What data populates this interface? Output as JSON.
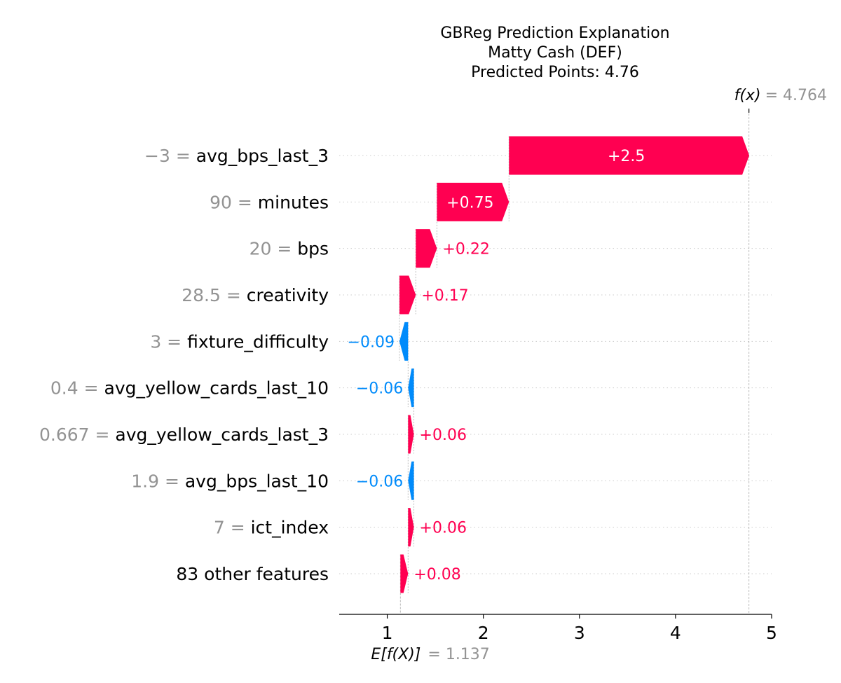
{
  "chart_data": {
    "type": "waterfall",
    "title_lines": [
      "GBReg Prediction Explanation",
      "Matty Cash (DEF)",
      "Predicted Points: 4.76"
    ],
    "base_value": 1.137,
    "output_value": 4.764,
    "base_label_prefix": "E[f(X)]",
    "base_label_value": "= 1.137",
    "output_label_prefix": "f(x)",
    "output_label_value": "= 4.764",
    "xlim": [
      0.5,
      5
    ],
    "xticks": [
      1,
      2,
      3,
      4,
      5
    ],
    "xtick_labels": [
      "1",
      "2",
      "3",
      "4",
      "5"
    ],
    "colors": {
      "positive": "#ff0051",
      "negative": "#008bfb",
      "value_text": "#939393",
      "grid": "#cccccc"
    },
    "features": [
      {
        "value": "−3",
        "name": "avg_bps_last_3",
        "contribution": 2.5,
        "label": "+2.5"
      },
      {
        "value": "90",
        "name": "minutes",
        "contribution": 0.75,
        "label": "+0.75"
      },
      {
        "value": "20",
        "name": "bps",
        "contribution": 0.22,
        "label": "+0.22"
      },
      {
        "value": "28.5",
        "name": "creativity",
        "contribution": 0.17,
        "label": "+0.17"
      },
      {
        "value": "3",
        "name": "fixture_difficulty",
        "contribution": -0.09,
        "label": "−0.09"
      },
      {
        "value": "0.4",
        "name": "avg_yellow_cards_last_10",
        "contribution": -0.06,
        "label": "−0.06"
      },
      {
        "value": "0.667",
        "name": "avg_yellow_cards_last_3",
        "contribution": 0.06,
        "label": "+0.06"
      },
      {
        "value": "1.9",
        "name": "avg_bps_last_10",
        "contribution": -0.06,
        "label": "−0.06"
      },
      {
        "value": "7",
        "name": "ict_index",
        "contribution": 0.06,
        "label": "+0.06"
      },
      {
        "value": "",
        "name": "83 other features",
        "contribution": 0.08,
        "label": "+0.08"
      }
    ]
  }
}
